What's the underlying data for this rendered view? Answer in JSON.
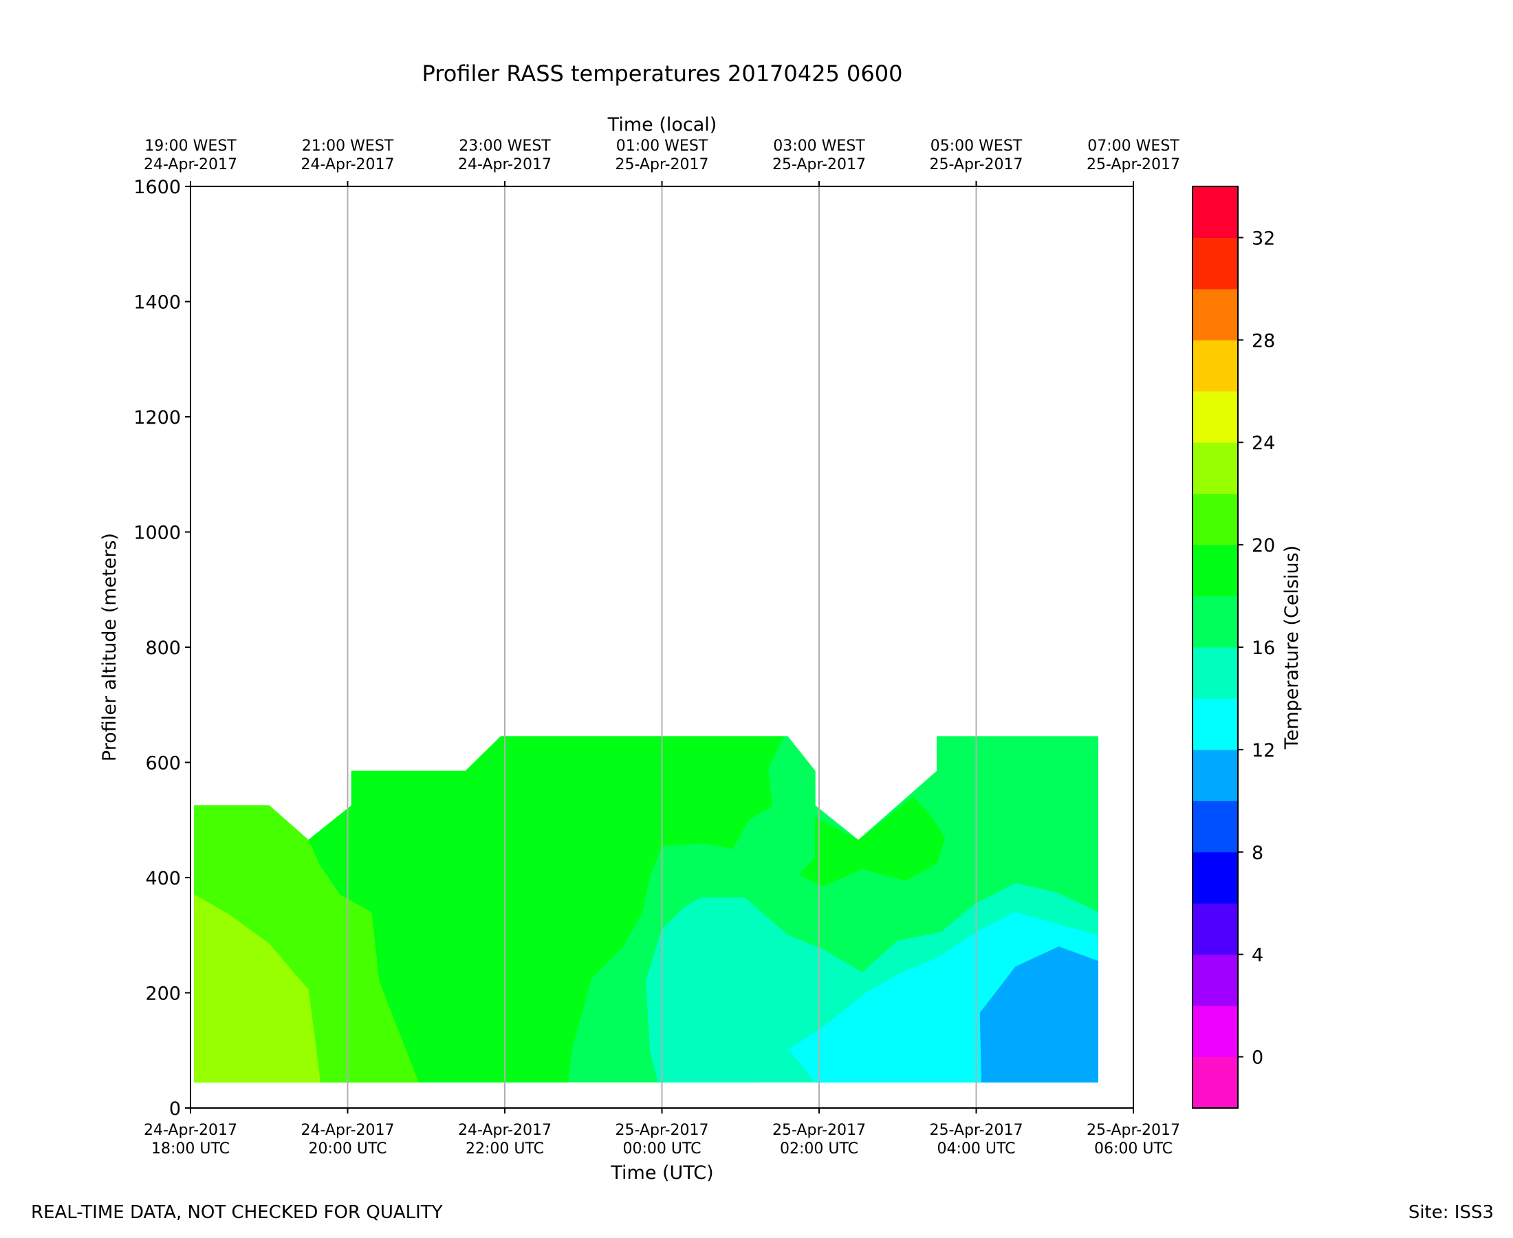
{
  "chart_data": {
    "type": "heatmap",
    "title": "Profiler RASS temperatures 20170425 0600",
    "xlabel": "Time (UTC)",
    "xlabel_top": "Time (local)",
    "ylabel": "Profiler altitude (meters)",
    "colorbar_label": "Temperature (Celsius)",
    "x_range_hours_since_18utc": [
      0,
      12
    ],
    "ylim": [
      0,
      1600
    ],
    "y_ticks": [
      0,
      200,
      400,
      600,
      800,
      1000,
      1200,
      1400,
      1600
    ],
    "x_ticks_bottom": [
      {
        "hour": 0,
        "line1": "24-Apr-2017",
        "line2": "18:00 UTC"
      },
      {
        "hour": 2,
        "line1": "24-Apr-2017",
        "line2": "20:00 UTC"
      },
      {
        "hour": 4,
        "line1": "24-Apr-2017",
        "line2": "22:00 UTC"
      },
      {
        "hour": 6,
        "line1": "25-Apr-2017",
        "line2": "00:00 UTC"
      },
      {
        "hour": 8,
        "line1": "25-Apr-2017",
        "line2": "02:00 UTC"
      },
      {
        "hour": 10,
        "line1": "25-Apr-2017",
        "line2": "04:00 UTC"
      },
      {
        "hour": 12,
        "line1": "25-Apr-2017",
        "line2": "06:00 UTC"
      }
    ],
    "x_ticks_top": [
      {
        "hour": 0,
        "line1": "19:00 WEST",
        "line2": "24-Apr-2017"
      },
      {
        "hour": 2,
        "line1": "21:00 WEST",
        "line2": "24-Apr-2017"
      },
      {
        "hour": 4,
        "line1": "23:00 WEST",
        "line2": "24-Apr-2017"
      },
      {
        "hour": 6,
        "line1": "01:00 WEST",
        "line2": "25-Apr-2017"
      },
      {
        "hour": 8,
        "line1": "03:00 WEST",
        "line2": "25-Apr-2017"
      },
      {
        "hour": 10,
        "line1": "05:00 WEST",
        "line2": "25-Apr-2017"
      },
      {
        "hour": 12,
        "line1": "07:00 WEST",
        "line2": "25-Apr-2017"
      }
    ],
    "colorbar": {
      "range": [
        -2,
        34
      ],
      "ticks": [
        0,
        4,
        8,
        12,
        16,
        20,
        24,
        28,
        32
      ],
      "levels": [
        {
          "from": -2,
          "to": 0,
          "color": "#ff10c8"
        },
        {
          "from": 0,
          "to": 2,
          "color": "#ee00ff"
        },
        {
          "from": 2,
          "to": 4,
          "color": "#a000ff"
        },
        {
          "from": 4,
          "to": 6,
          "color": "#5000ff"
        },
        {
          "from": 6,
          "to": 8,
          "color": "#0000ff"
        },
        {
          "from": 8,
          "to": 10,
          "color": "#0050ff"
        },
        {
          "from": 10,
          "to": 12,
          "color": "#00a8ff"
        },
        {
          "from": 12,
          "to": 14,
          "color": "#00ffff"
        },
        {
          "from": 14,
          "to": 16,
          "color": "#00ffbf"
        },
        {
          "from": 16,
          "to": 18,
          "color": "#00ff5a"
        },
        {
          "from": 18,
          "to": 20,
          "color": "#00ff14"
        },
        {
          "from": 20,
          "to": 22,
          "color": "#46ff00"
        },
        {
          "from": 22,
          "to": 24,
          "color": "#98ff00"
        },
        {
          "from": 24,
          "to": 26,
          "color": "#e6ff00"
        },
        {
          "from": 26,
          "to": 28,
          "color": "#ffcc00"
        },
        {
          "from": 28,
          "to": 30,
          "color": "#ff7a00"
        },
        {
          "from": 30,
          "to": 32,
          "color": "#ff2a00"
        },
        {
          "from": 32,
          "to": 34,
          "color": "#ff0030"
        }
      ]
    },
    "contour_regions": [
      {
        "name": "outer-16-18C",
        "temp_range": "16-18",
        "color": "#00ff5a",
        "points": [
          [
            0.05,
            525
          ],
          [
            1.0,
            525
          ],
          [
            1.5,
            465
          ],
          [
            2.05,
            525
          ],
          [
            2.05,
            585
          ],
          [
            3.5,
            585
          ],
          [
            3.95,
            645
          ],
          [
            7.6,
            645
          ],
          [
            7.95,
            585
          ],
          [
            7.95,
            525
          ],
          [
            8.5,
            465
          ],
          [
            9.5,
            585
          ],
          [
            9.5,
            645
          ],
          [
            11.55,
            645
          ],
          [
            11.55,
            45
          ],
          [
            7.95,
            45
          ],
          [
            7.6,
            105
          ],
          [
            7.25,
            45
          ],
          [
            0.05,
            45
          ]
        ]
      },
      {
        "name": "band-18-20C",
        "temp_range": "18-20",
        "color": "#00ff14",
        "points": [
          [
            0.05,
            525
          ],
          [
            1.0,
            525
          ],
          [
            1.5,
            465
          ],
          [
            2.05,
            525
          ],
          [
            2.05,
            585
          ],
          [
            3.5,
            585
          ],
          [
            3.95,
            645
          ],
          [
            7.55,
            645
          ],
          [
            7.35,
            590
          ],
          [
            7.4,
            525
          ],
          [
            7.1,
            500
          ],
          [
            6.9,
            450
          ],
          [
            6.55,
            460
          ],
          [
            6.0,
            455
          ],
          [
            5.85,
            405
          ],
          [
            5.75,
            340
          ],
          [
            5.5,
            280
          ],
          [
            5.1,
            225
          ],
          [
            4.85,
            100
          ],
          [
            4.8,
            45
          ],
          [
            0.05,
            45
          ]
        ]
      },
      {
        "name": "band-20-22C",
        "temp_range": "20-22",
        "color": "#46ff00",
        "points": [
          [
            0.05,
            525
          ],
          [
            1.0,
            525
          ],
          [
            1.5,
            465
          ],
          [
            1.65,
            420
          ],
          [
            1.9,
            370
          ],
          [
            2.3,
            340
          ],
          [
            2.35,
            280
          ],
          [
            2.4,
            220
          ],
          [
            2.6,
            150
          ],
          [
            2.9,
            45
          ],
          [
            0.05,
            45
          ]
        ]
      },
      {
        "name": "band-22-24C",
        "temp_range": "22-24",
        "color": "#98ff00",
        "points": [
          [
            0.05,
            370
          ],
          [
            0.5,
            335
          ],
          [
            1.0,
            285
          ],
          [
            1.5,
            205
          ],
          [
            1.6,
            100
          ],
          [
            1.65,
            45
          ],
          [
            0.05,
            45
          ]
        ]
      },
      {
        "name": "warm-pocket-18-20C",
        "temp_range": "18-20",
        "color": "#00ff14",
        "points": [
          [
            7.95,
            505
          ],
          [
            8.5,
            465
          ],
          [
            9.2,
            540
          ],
          [
            9.4,
            510
          ],
          [
            9.6,
            470
          ],
          [
            9.5,
            425
          ],
          [
            9.1,
            395
          ],
          [
            8.55,
            415
          ],
          [
            8.05,
            385
          ],
          [
            7.75,
            405
          ],
          [
            7.95,
            435
          ]
        ]
      },
      {
        "name": "band-14-16C",
        "temp_range": "14-16",
        "color": "#00ffbf",
        "points": [
          [
            5.95,
            45
          ],
          [
            5.85,
            100
          ],
          [
            5.8,
            220
          ],
          [
            6.0,
            310
          ],
          [
            6.3,
            350
          ],
          [
            6.5,
            365
          ],
          [
            7.05,
            365
          ],
          [
            7.6,
            300
          ],
          [
            8.05,
            275
          ],
          [
            8.55,
            235
          ],
          [
            9.0,
            290
          ],
          [
            9.55,
            305
          ],
          [
            10.0,
            355
          ],
          [
            10.5,
            390
          ],
          [
            11.0,
            375
          ],
          [
            11.55,
            340
          ],
          [
            11.55,
            45
          ]
        ]
      },
      {
        "name": "band-12-14C",
        "temp_range": "12-14",
        "color": "#00ffff",
        "points": [
          [
            7.95,
            45
          ],
          [
            7.6,
            105
          ],
          [
            7.6,
            100
          ],
          [
            8.05,
            140
          ],
          [
            8.6,
            200
          ],
          [
            9.05,
            235
          ],
          [
            9.5,
            260
          ],
          [
            10.0,
            305
          ],
          [
            10.5,
            340
          ],
          [
            11.0,
            320
          ],
          [
            11.55,
            300
          ],
          [
            11.55,
            45
          ]
        ]
      },
      {
        "name": "band-10-12C",
        "temp_range": "10-12",
        "color": "#00a8ff",
        "points": [
          [
            10.07,
            45
          ],
          [
            10.05,
            165
          ],
          [
            10.5,
            245
          ],
          [
            11.05,
            280
          ],
          [
            11.55,
            255
          ],
          [
            11.55,
            45
          ]
        ]
      }
    ]
  },
  "footer": {
    "left": "REAL-TIME DATA, NOT CHECKED FOR QUALITY",
    "right": "Site: ISS3"
  }
}
